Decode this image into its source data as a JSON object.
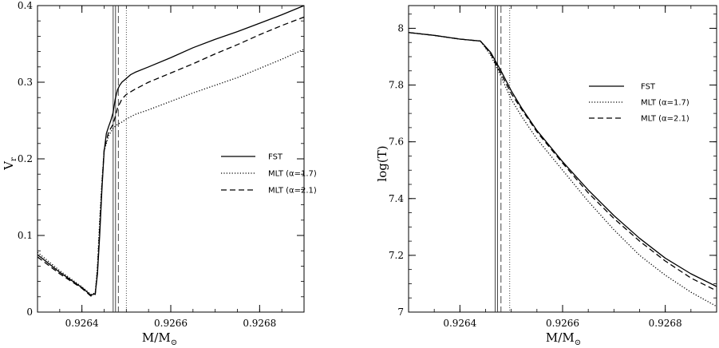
{
  "chart_data": [
    {
      "type": "line",
      "xlabel": "M/M",
      "xlabel_sub": "⊙",
      "ylabel": "V",
      "ylabel_sub": "r",
      "xlim": [
        0.9263,
        0.9269
      ],
      "ylim": [
        0,
        0.4
      ],
      "xticks": [
        0.9264,
        0.9266,
        0.9268
      ],
      "xtick_labels": [
        "0.9264",
        "0.9266",
        "0.9268"
      ],
      "yticks": [
        0,
        0.1,
        0.2,
        0.3,
        0.4
      ],
      "ytick_labels": [
        "0",
        "0.1",
        "0.2",
        "0.3",
        "0.4"
      ],
      "legend_position": "center-right",
      "vlines": [
        {
          "x": 0.926473,
          "style": "solid",
          "double": true
        },
        {
          "x": 0.926482,
          "style": "dashed"
        },
        {
          "x": 0.9265,
          "style": "dotted"
        }
      ],
      "series": [
        {
          "name": "FST",
          "style": "solid",
          "x": [
            0.9263,
            0.92635,
            0.9264,
            0.92642,
            0.92643,
            0.926435,
            0.92644,
            0.926445,
            0.92645,
            0.926455,
            0.92646,
            0.926465,
            0.92647,
            0.926475,
            0.92648,
            0.926485,
            0.92649,
            0.9265,
            0.92651,
            0.92652,
            0.92655,
            0.9266,
            0.92665,
            0.9267,
            0.92675,
            0.9268,
            0.92685,
            0.9269
          ],
          "y": [
            0.075,
            0.052,
            0.032,
            0.022,
            0.024,
            0.05,
            0.1,
            0.16,
            0.21,
            0.233,
            0.242,
            0.25,
            0.26,
            0.278,
            0.29,
            0.296,
            0.3,
            0.305,
            0.31,
            0.313,
            0.32,
            0.332,
            0.345,
            0.356,
            0.366,
            0.377,
            0.388,
            0.4
          ]
        },
        {
          "name": "MLT (α=1.7)",
          "style": "dotted",
          "x": [
            0.9263,
            0.92635,
            0.9264,
            0.92642,
            0.92643,
            0.926435,
            0.92644,
            0.926445,
            0.92645,
            0.92646,
            0.92647,
            0.92648,
            0.92649,
            0.9265,
            0.92652,
            0.92655,
            0.9266,
            0.92665,
            0.9267,
            0.92675,
            0.9268,
            0.92685,
            0.9269
          ],
          "y": [
            0.078,
            0.054,
            0.033,
            0.023,
            0.025,
            0.06,
            0.12,
            0.17,
            0.21,
            0.23,
            0.24,
            0.245,
            0.248,
            0.252,
            0.258,
            0.264,
            0.275,
            0.286,
            0.296,
            0.306,
            0.318,
            0.33,
            0.343
          ]
        },
        {
          "name": "MLT (α=2.1)",
          "style": "dashed",
          "x": [
            0.9263,
            0.92635,
            0.9264,
            0.92642,
            0.92643,
            0.926435,
            0.92644,
            0.926445,
            0.92645,
            0.92646,
            0.92647,
            0.926475,
            0.92648,
            0.92649,
            0.9265,
            0.92652,
            0.92655,
            0.9266,
            0.92665,
            0.9267,
            0.92675,
            0.9268,
            0.92685,
            0.9269
          ],
          "y": [
            0.072,
            0.05,
            0.031,
            0.021,
            0.023,
            0.055,
            0.11,
            0.165,
            0.212,
            0.235,
            0.245,
            0.255,
            0.266,
            0.278,
            0.284,
            0.291,
            0.3,
            0.312,
            0.324,
            0.337,
            0.349,
            0.362,
            0.374,
            0.385
          ]
        }
      ]
    },
    {
      "type": "line",
      "xlabel": "M/M",
      "xlabel_sub": "⊙",
      "ylabel": "log(T)",
      "xlim": [
        0.9263,
        0.9269
      ],
      "ylim": [
        7.0,
        8.08
      ],
      "xticks": [
        0.9264,
        0.9266,
        0.9268
      ],
      "xtick_labels": [
        "0.9264",
        "0.9266",
        "0.9268"
      ],
      "yticks": [
        7.0,
        7.2,
        7.4,
        7.6,
        7.8,
        8.0
      ],
      "ytick_labels": [
        "7",
        "7.2",
        "7.4",
        "7.6",
        "7.8",
        "8"
      ],
      "legend_position": "top-right",
      "vlines": [
        {
          "x": 0.926471,
          "style": "solid",
          "double": true
        },
        {
          "x": 0.92648,
          "style": "dashed"
        },
        {
          "x": 0.926497,
          "style": "dotted"
        }
      ],
      "series": [
        {
          "name": "FST",
          "style": "solid",
          "x": [
            0.9263,
            0.92635,
            0.9264,
            0.92644,
            0.92646,
            0.92648,
            0.9265,
            0.92652,
            0.92655,
            0.9266,
            0.92665,
            0.9267,
            0.92675,
            0.9268,
            0.92685,
            0.9269
          ],
          "y": [
            7.985,
            7.975,
            7.962,
            7.955,
            7.915,
            7.85,
            7.78,
            7.72,
            7.64,
            7.53,
            7.43,
            7.34,
            7.26,
            7.19,
            7.135,
            7.09
          ]
        },
        {
          "name": "MLT (α=1.7)",
          "style": "dotted",
          "x": [
            0.9263,
            0.92635,
            0.9264,
            0.92644,
            0.92646,
            0.92648,
            0.9265,
            0.92652,
            0.92655,
            0.9266,
            0.92665,
            0.9267,
            0.92675,
            0.9268,
            0.92685,
            0.9269
          ],
          "y": [
            7.985,
            7.975,
            7.962,
            7.955,
            7.905,
            7.83,
            7.75,
            7.69,
            7.61,
            7.5,
            7.39,
            7.29,
            7.2,
            7.13,
            7.07,
            7.02
          ]
        },
        {
          "name": "MLT (α=2.1)",
          "style": "dashed",
          "x": [
            0.9263,
            0.92635,
            0.9264,
            0.92644,
            0.92646,
            0.92648,
            0.9265,
            0.92652,
            0.92655,
            0.9266,
            0.92665,
            0.9267,
            0.92675,
            0.9268,
            0.92685,
            0.9269
          ],
          "y": [
            7.985,
            7.975,
            7.962,
            7.955,
            7.91,
            7.84,
            7.77,
            7.715,
            7.635,
            7.525,
            7.42,
            7.33,
            7.25,
            7.18,
            7.12,
            7.075
          ]
        }
      ]
    }
  ]
}
